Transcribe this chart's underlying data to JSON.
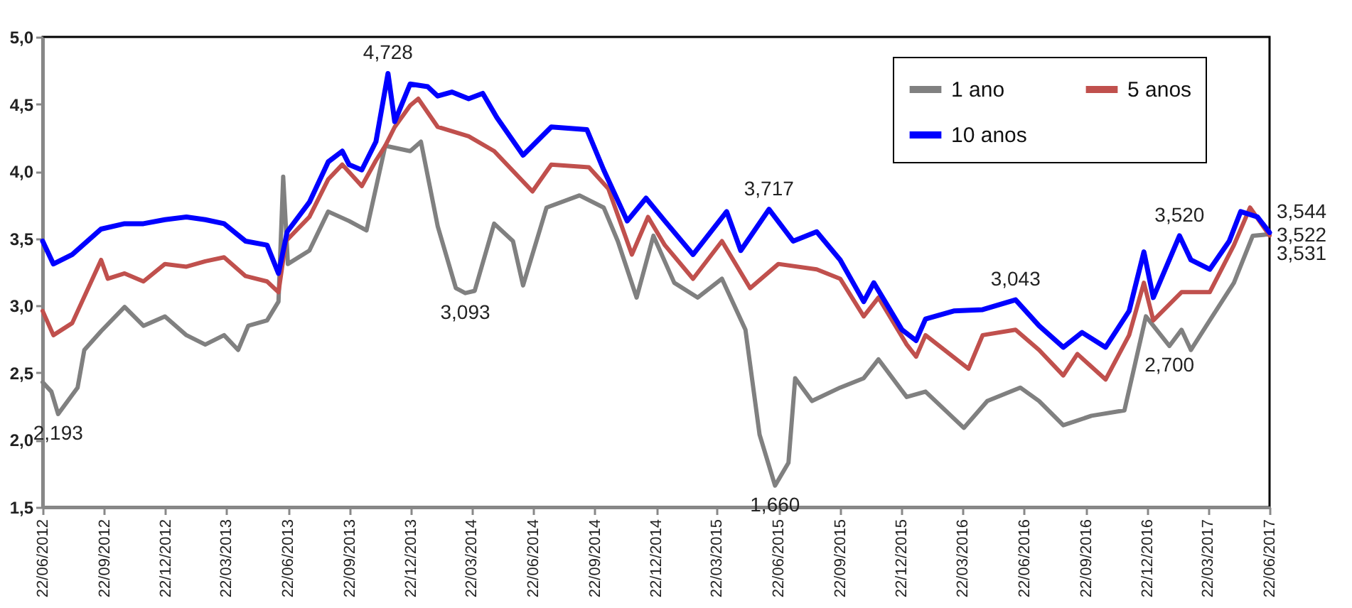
{
  "chart_data": {
    "type": "line",
    "xlim": [
      "2012-06-22",
      "2017-06-22"
    ],
    "ylim": [
      1.5,
      5.0
    ],
    "yticks": [
      {
        "value": 1.5,
        "label": "1,5"
      },
      {
        "value": 2.0,
        "label": "2,0"
      },
      {
        "value": 2.5,
        "label": "2,5"
      },
      {
        "value": 3.0,
        "label": "3,0"
      },
      {
        "value": 3.5,
        "label": "3,5"
      },
      {
        "value": 4.0,
        "label": "4,0"
      },
      {
        "value": 4.5,
        "label": "4,5"
      },
      {
        "value": 5.0,
        "label": "5,0"
      }
    ],
    "xticks": [
      {
        "value": "2012-06-22",
        "label": "22/06/2012"
      },
      {
        "value": "2012-09-22",
        "label": "22/09/2012"
      },
      {
        "value": "2012-12-22",
        "label": "22/12/2012"
      },
      {
        "value": "2013-03-22",
        "label": "22/03/2013"
      },
      {
        "value": "2013-06-22",
        "label": "22/06/2013"
      },
      {
        "value": "2013-09-22",
        "label": "22/09/2013"
      },
      {
        "value": "2013-12-22",
        "label": "22/12/2013"
      },
      {
        "value": "2014-03-22",
        "label": "22/03/2014"
      },
      {
        "value": "2014-06-22",
        "label": "22/06/2014"
      },
      {
        "value": "2014-09-22",
        "label": "22/09/2014"
      },
      {
        "value": "2014-12-22",
        "label": "22/12/2014"
      },
      {
        "value": "2015-03-22",
        "label": "22/03/2015"
      },
      {
        "value": "2015-06-22",
        "label": "22/06/2015"
      },
      {
        "value": "2015-09-22",
        "label": "22/09/2015"
      },
      {
        "value": "2015-12-22",
        "label": "22/12/2015"
      },
      {
        "value": "2016-03-22",
        "label": "22/03/2016"
      },
      {
        "value": "2016-06-22",
        "label": "22/06/2016"
      },
      {
        "value": "2016-09-22",
        "label": "22/09/2016"
      },
      {
        "value": "2016-12-22",
        "label": "22/12/2016"
      },
      {
        "value": "2017-03-22",
        "label": "22/03/2017"
      },
      {
        "value": "2017-06-22",
        "label": "22/06/2017"
      }
    ],
    "legend": "top right",
    "series": [
      {
        "name": "1 ano",
        "color": "#808080",
        "x": [
          "2012-06-22",
          "2012-07-05",
          "2012-07-15",
          "2012-08-13",
          "2012-08-23",
          "2012-09-17",
          "2012-10-22",
          "2012-11-19",
          "2012-12-21",
          "2013-01-22",
          "2013-02-19",
          "2013-03-19",
          "2013-04-09",
          "2013-04-24",
          "2013-05-22",
          "2013-06-08",
          "2013-06-15",
          "2013-06-22",
          "2013-07-24",
          "2013-08-21",
          "2013-09-21",
          "2013-10-17",
          "2013-11-14",
          "2013-12-21",
          "2014-01-06",
          "2014-01-31",
          "2014-02-27",
          "2014-03-13",
          "2014-03-27",
          "2014-04-25",
          "2014-05-23",
          "2014-06-07",
          "2014-07-12",
          "2014-08-30",
          "2014-10-05",
          "2014-10-26",
          "2014-11-23",
          "2014-12-18",
          "2015-01-18",
          "2015-02-22",
          "2015-03-30",
          "2015-05-04",
          "2015-05-25",
          "2015-06-17",
          "2015-07-07",
          "2015-07-17",
          "2015-08-11",
          "2015-09-22",
          "2015-10-27",
          "2015-11-18",
          "2015-12-30",
          "2016-01-27",
          "2016-03-24",
          "2016-04-28",
          "2016-06-16",
          "2016-07-14",
          "2016-08-19",
          "2016-09-30",
          "2016-11-18",
          "2016-12-20",
          "2017-01-24",
          "2017-02-11",
          "2017-02-25",
          "2017-03-25",
          "2017-04-30",
          "2017-05-28",
          "2017-06-22"
        ],
        "values": [
          2.43,
          2.36,
          2.193,
          2.39,
          2.67,
          2.81,
          2.99,
          2.85,
          2.92,
          2.78,
          2.71,
          2.78,
          2.67,
          2.85,
          2.89,
          3.03,
          3.96,
          3.31,
          3.41,
          3.7,
          3.63,
          3.56,
          4.19,
          4.15,
          4.22,
          3.59,
          3.13,
          3.093,
          3.11,
          3.61,
          3.48,
          3.15,
          3.73,
          3.82,
          3.73,
          3.48,
          3.06,
          3.52,
          3.17,
          3.06,
          3.2,
          2.82,
          2.04,
          1.66,
          1.83,
          2.46,
          2.29,
          2.39,
          2.46,
          2.6,
          2.32,
          2.36,
          2.09,
          2.29,
          2.39,
          2.29,
          2.11,
          2.18,
          2.22,
          2.92,
          2.7,
          2.82,
          2.67,
          2.89,
          3.17,
          3.52,
          3.531
        ]
      },
      {
        "name": "5 anos",
        "color": "#c0504d",
        "x": [
          "2012-06-22",
          "2012-07-08",
          "2012-08-05",
          "2012-09-17",
          "2012-09-27",
          "2012-10-22",
          "2012-11-19",
          "2012-12-21",
          "2013-01-22",
          "2013-02-19",
          "2013-03-19",
          "2013-04-20",
          "2013-05-22",
          "2013-06-08",
          "2013-06-19",
          "2013-07-24",
          "2013-08-21",
          "2013-09-11",
          "2013-10-10",
          "2013-10-31",
          "2013-11-14",
          "2013-11-28",
          "2013-12-21",
          "2014-01-02",
          "2014-01-31",
          "2014-03-18",
          "2014-04-25",
          "2014-06-21",
          "2014-07-19",
          "2014-09-13",
          "2014-10-12",
          "2014-11-16",
          "2014-12-10",
          "2015-01-04",
          "2015-02-15",
          "2015-03-30",
          "2015-05-11",
          "2015-06-22",
          "2015-08-18",
          "2015-09-22",
          "2015-10-27",
          "2015-11-18",
          "2015-12-30",
          "2016-01-13",
          "2016-01-27",
          "2016-03-31",
          "2016-04-21",
          "2016-06-09",
          "2016-07-14",
          "2016-08-19",
          "2016-09-09",
          "2016-10-21",
          "2016-11-25",
          "2016-12-17",
          "2016-12-31",
          "2017-02-11",
          "2017-03-25",
          "2017-04-30",
          "2017-05-24",
          "2017-06-22"
        ],
        "values": [
          2.96,
          2.78,
          2.87,
          3.34,
          3.2,
          3.24,
          3.18,
          3.31,
          3.29,
          3.33,
          3.36,
          3.22,
          3.18,
          3.1,
          3.48,
          3.66,
          3.94,
          4.05,
          3.89,
          4.08,
          4.19,
          4.33,
          4.49,
          4.54,
          4.33,
          4.26,
          4.15,
          3.85,
          4.05,
          4.03,
          3.87,
          3.38,
          3.66,
          3.45,
          3.2,
          3.48,
          3.13,
          3.31,
          3.27,
          3.2,
          2.92,
          3.06,
          2.71,
          2.62,
          2.78,
          2.53,
          2.78,
          2.82,
          2.67,
          2.48,
          2.64,
          2.45,
          2.78,
          3.17,
          2.89,
          3.1,
          3.1,
          3.45,
          3.73,
          3.522
        ]
      },
      {
        "name": "10 anos",
        "color": "#0000ff",
        "x": [
          "2012-06-22",
          "2012-07-08",
          "2012-08-05",
          "2012-09-17",
          "2012-10-22",
          "2012-11-19",
          "2012-12-21",
          "2013-01-22",
          "2013-02-19",
          "2013-03-19",
          "2013-04-20",
          "2013-05-22",
          "2013-06-08",
          "2013-06-21",
          "2013-07-24",
          "2013-08-21",
          "2013-09-11",
          "2013-09-21",
          "2013-10-10",
          "2013-10-31",
          "2013-11-18",
          "2013-11-28",
          "2013-12-21",
          "2014-01-16",
          "2014-01-31",
          "2014-02-21",
          "2014-03-18",
          "2014-04-08",
          "2014-04-29",
          "2014-06-07",
          "2014-07-19",
          "2014-09-10",
          "2014-10-05",
          "2014-11-09",
          "2014-12-07",
          "2015-01-04",
          "2015-02-15",
          "2015-04-06",
          "2015-04-27",
          "2015-06-08",
          "2015-07-14",
          "2015-08-18",
          "2015-09-22",
          "2015-10-27",
          "2015-11-11",
          "2015-12-23",
          "2016-01-13",
          "2016-01-27",
          "2016-03-09",
          "2016-04-21",
          "2016-06-09",
          "2016-07-14",
          "2016-08-19",
          "2016-09-16",
          "2016-10-21",
          "2016-11-25",
          "2016-12-17",
          "2016-12-31",
          "2017-02-08",
          "2017-02-25",
          "2017-03-25",
          "2017-04-23",
          "2017-05-10",
          "2017-06-04",
          "2017-06-22"
        ],
        "values": [
          3.48,
          3.31,
          3.38,
          3.57,
          3.61,
          3.61,
          3.64,
          3.66,
          3.64,
          3.61,
          3.48,
          3.45,
          3.24,
          3.55,
          3.77,
          4.07,
          4.15,
          4.05,
          4.01,
          4.22,
          4.728,
          4.37,
          4.65,
          4.63,
          4.56,
          4.59,
          4.54,
          4.58,
          4.4,
          4.12,
          4.33,
          4.31,
          4.01,
          3.63,
          3.8,
          3.63,
          3.38,
          3.7,
          3.41,
          3.717,
          3.48,
          3.55,
          3.34,
          3.03,
          3.17,
          2.82,
          2.74,
          2.9,
          2.96,
          2.97,
          3.043,
          2.85,
          2.69,
          2.8,
          2.69,
          2.96,
          3.4,
          3.06,
          3.52,
          3.34,
          3.27,
          3.48,
          3.7,
          3.66,
          3.544
        ]
      }
    ],
    "annotations": [
      {
        "text": "2,193",
        "x": "2012-07-15",
        "y": 2.193
      },
      {
        "text": "4,728",
        "x": "2013-11-18",
        "y": 4.728
      },
      {
        "text": "3,093",
        "x": "2014-03-13",
        "y": 3.093
      },
      {
        "text": "3,717",
        "x": "2015-06-08",
        "y": 3.717
      },
      {
        "text": "1,660",
        "x": "2015-06-17",
        "y": 1.66
      },
      {
        "text": "3,043",
        "x": "2016-06-09",
        "y": 3.043
      },
      {
        "text": "3,520",
        "x": "2017-02-08",
        "y": 3.52
      },
      {
        "text": "2,700",
        "x": "2017-01-24",
        "y": 2.7
      },
      {
        "text": "3,544",
        "x": "2017-06-22",
        "y": 3.544
      },
      {
        "text": "3,522",
        "x": "2017-06-22",
        "y": 3.522
      },
      {
        "text": "3,531",
        "x": "2017-06-22",
        "y": 3.531
      }
    ]
  }
}
